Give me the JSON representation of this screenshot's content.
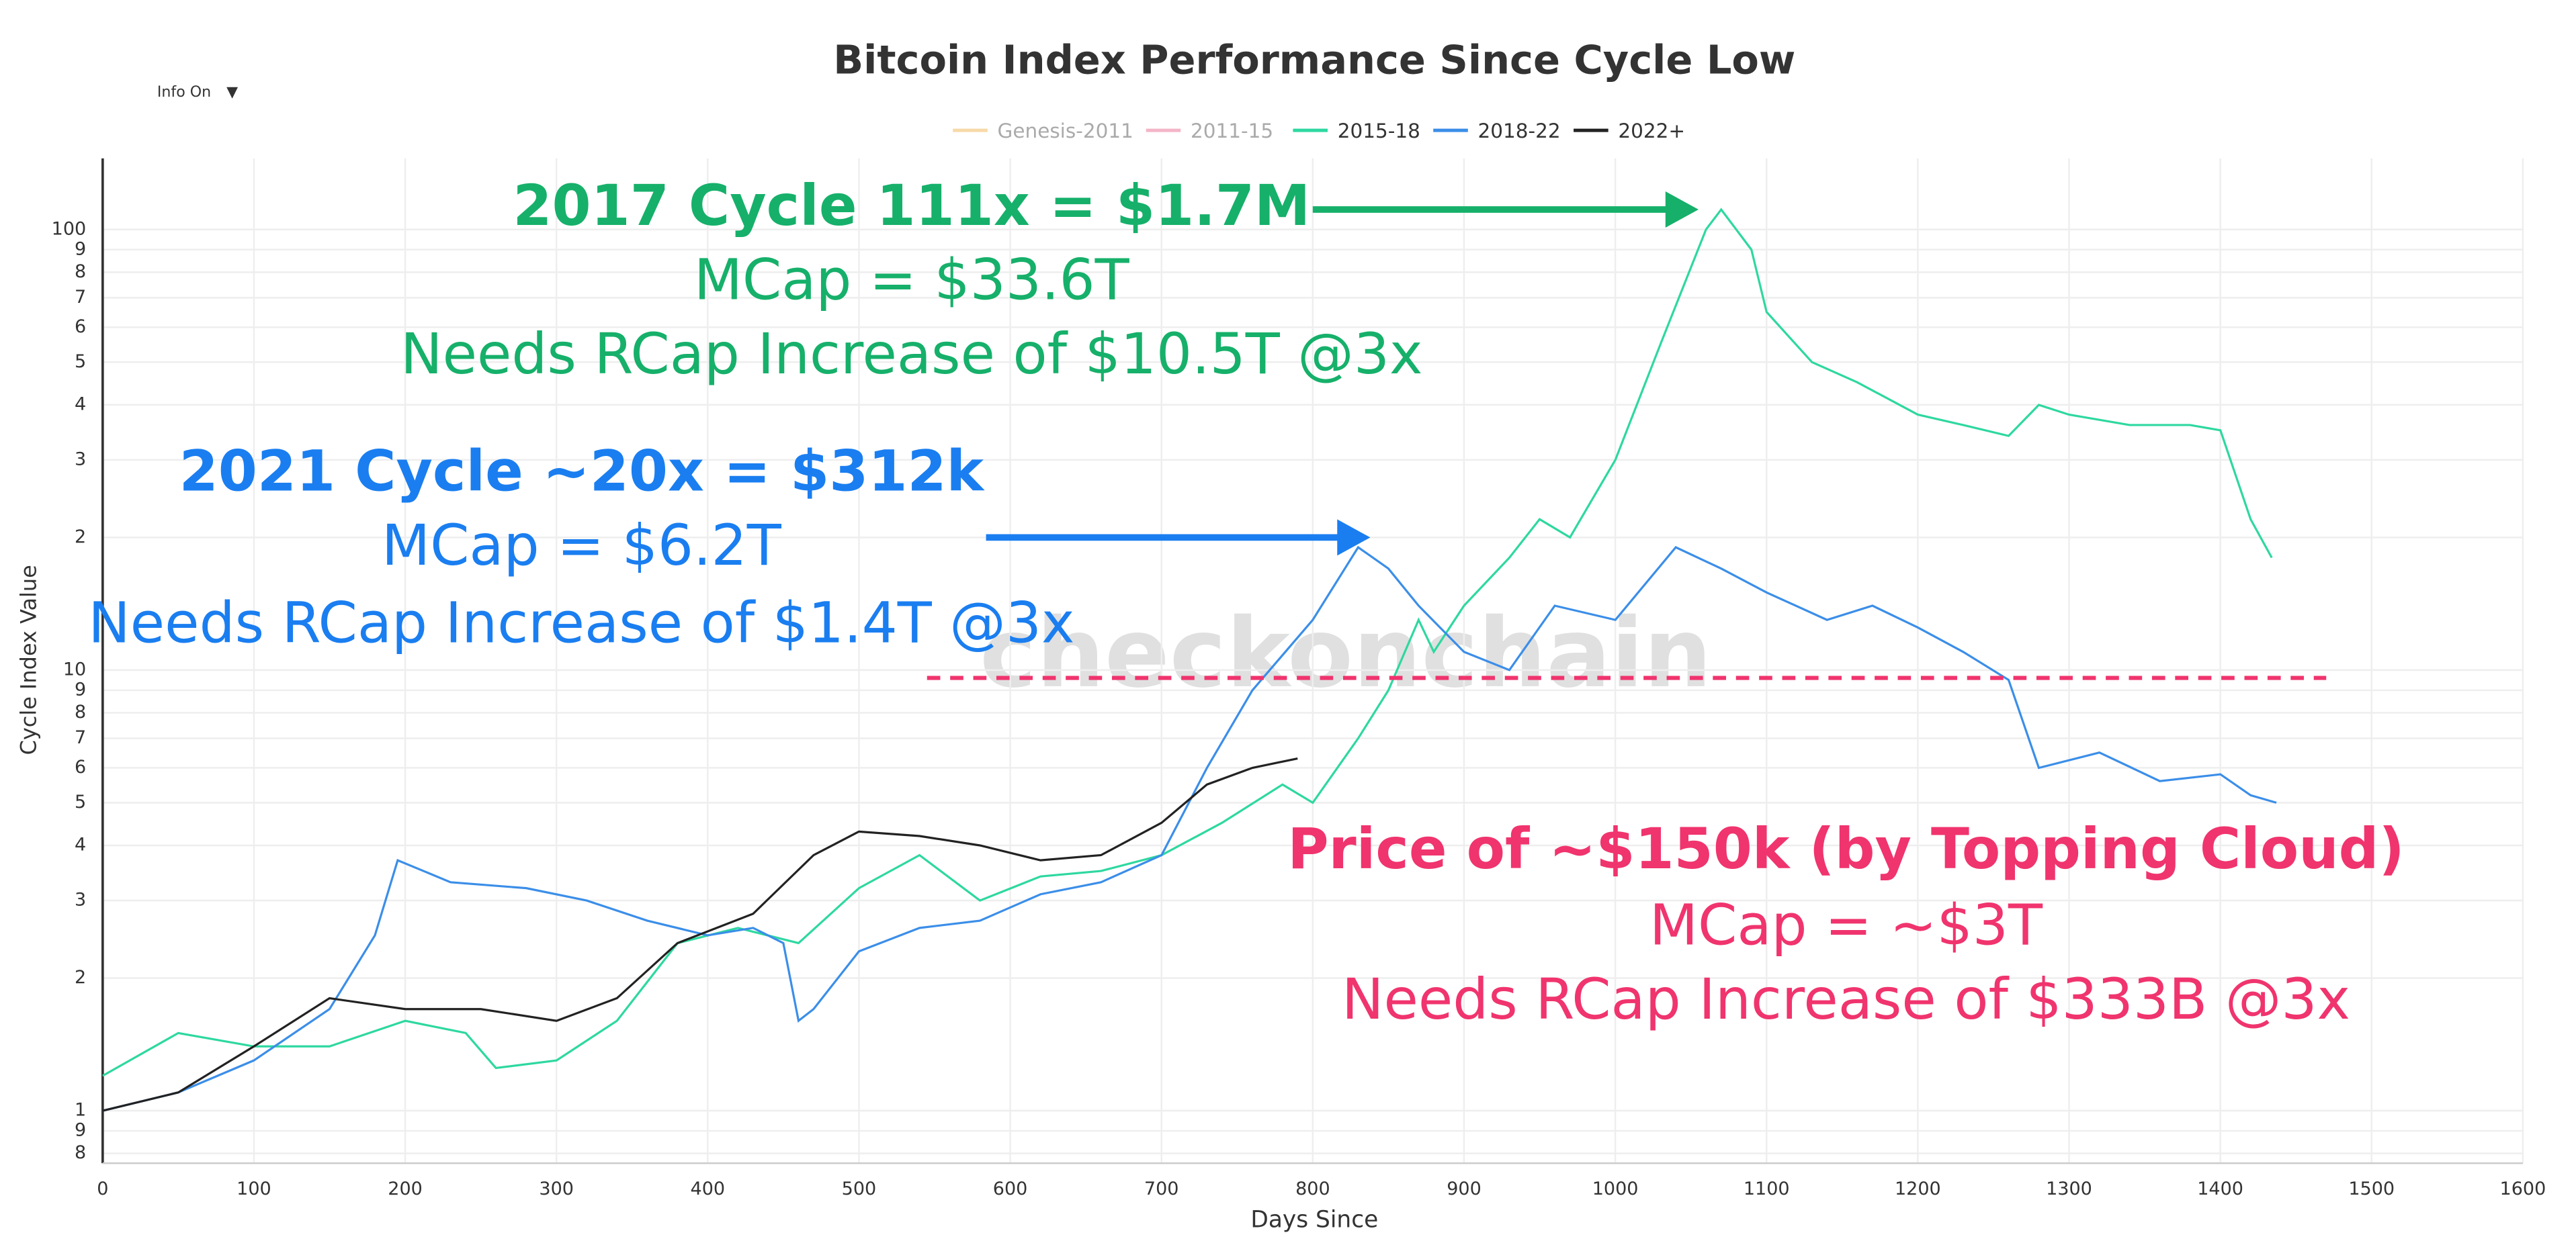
{
  "chart_data": {
    "type": "line",
    "title": "Bitcoin Index Performance Since Cycle Low",
    "controls": {
      "label": "Info On",
      "arrow": "▼"
    },
    "watermark": "checkonchain",
    "x_label": "Days Since",
    "y_label": "Cycle Index Value",
    "log_y": true,
    "grid": true,
    "legend": "top",
    "xlim": [
      0,
      1600
    ],
    "xticks": [
      0,
      100,
      200,
      300,
      400,
      500,
      600,
      700,
      800,
      900,
      1000,
      1100,
      1200,
      1300,
      1400,
      1500,
      1600
    ],
    "ylim": [
      0.76,
      145
    ],
    "yticks": [
      {
        "value": 0.8,
        "label": "8"
      },
      {
        "value": 0.9,
        "label": "9"
      },
      1,
      2,
      3,
      4,
      5,
      6,
      7,
      8,
      9,
      10,
      {
        "value": 20,
        "label": "2"
      },
      {
        "value": 30,
        "label": "3"
      },
      {
        "value": 40,
        "label": "4"
      },
      {
        "value": 50,
        "label": "5"
      },
      {
        "value": 60,
        "label": "6"
      },
      {
        "value": 70,
        "label": "7"
      },
      {
        "value": 80,
        "label": "8"
      },
      {
        "value": 90,
        "label": "9"
      },
      100
    ],
    "series": [
      {
        "name": "Genesis-2011",
        "color": "#f7d9a8",
        "visible": false,
        "x": [],
        "values": []
      },
      {
        "name": "2011-15",
        "color": "#f4b5c8",
        "visible": false,
        "x": [],
        "values": []
      },
      {
        "name": "2015-18",
        "color": "#2ed8a0",
        "visible": true,
        "x": [
          0,
          50,
          100,
          150,
          200,
          240,
          260,
          300,
          340,
          380,
          420,
          460,
          500,
          540,
          580,
          620,
          660,
          700,
          740,
          780,
          800,
          830,
          850,
          870,
          880,
          900,
          930,
          950,
          970,
          1000,
          1030,
          1060,
          1070,
          1090,
          1100,
          1130,
          1160,
          1200,
          1230,
          1260,
          1280,
          1300,
          1340,
          1380,
          1400,
          1420,
          1434
        ],
        "values": [
          1.2,
          1.5,
          1.4,
          1.4,
          1.6,
          1.5,
          1.25,
          1.3,
          1.6,
          2.4,
          2.6,
          2.4,
          3.2,
          3.8,
          3.0,
          3.4,
          3.5,
          3.8,
          4.5,
          5.5,
          5.0,
          7,
          9,
          13,
          11,
          14,
          18,
          22,
          20,
          30,
          55,
          100,
          111,
          90,
          65,
          50,
          45,
          38,
          36,
          34,
          40,
          38,
          36,
          36,
          35,
          22,
          18
        ]
      },
      {
        "name": "2018-22",
        "color": "#3b8ee8",
        "visible": true,
        "x": [
          0,
          50,
          100,
          150,
          180,
          195,
          230,
          280,
          320,
          360,
          400,
          430,
          450,
          460,
          470,
          500,
          540,
          580,
          620,
          660,
          700,
          730,
          760,
          800,
          830,
          850,
          870,
          900,
          930,
          960,
          1000,
          1040,
          1070,
          1100,
          1140,
          1170,
          1200,
          1230,
          1260,
          1280,
          1320,
          1360,
          1400,
          1420,
          1437
        ],
        "values": [
          1.0,
          1.1,
          1.3,
          1.7,
          2.5,
          3.7,
          3.3,
          3.2,
          3.0,
          2.7,
          2.5,
          2.6,
          2.4,
          1.6,
          1.7,
          2.3,
          2.6,
          2.7,
          3.1,
          3.3,
          3.8,
          6,
          9,
          13,
          19,
          17,
          14,
          11,
          10,
          14,
          13,
          19,
          17,
          15,
          13,
          14,
          12.5,
          11,
          9.5,
          6,
          6.5,
          5.6,
          5.8,
          5.2,
          5.0
        ]
      },
      {
        "name": "2022+",
        "color": "#222222",
        "visible": true,
        "x": [
          0,
          50,
          100,
          150,
          200,
          250,
          300,
          340,
          380,
          430,
          470,
          500,
          540,
          580,
          620,
          660,
          700,
          730,
          760,
          790
        ],
        "values": [
          1.0,
          1.1,
          1.4,
          1.8,
          1.7,
          1.7,
          1.6,
          1.8,
          2.4,
          2.8,
          3.8,
          4.3,
          4.2,
          4.0,
          3.7,
          3.8,
          4.5,
          5.5,
          6.0,
          6.3
        ]
      }
    ],
    "annotations": [
      {
        "lines": [
          "2017 Cycle 111x = $1.7M",
          "MCap = $33.6T",
          "Needs RCap Increase of $10.5T @3x"
        ],
        "color": "#16b06a",
        "arrow": {
          "x": [
            800,
            1055
          ],
          "value": 111
        }
      },
      {
        "lines": [
          "2021 Cycle ~20x = $312k",
          "MCap = $6.2T",
          "Needs RCap Increase of $1.4T @3x"
        ],
        "color": "#1a7ef0",
        "arrow": {
          "x": [
            584,
            838
          ],
          "value": 20
        }
      },
      {
        "lines": [
          "Price of ~$150k (by Topping Cloud)",
          "MCap = ~$3T",
          "Needs RCap Increase of $333B @3x"
        ],
        "color": "#f0346e",
        "reference_line": {
          "x": [
            545,
            1470
          ],
          "value": 9.6
        }
      }
    ]
  }
}
